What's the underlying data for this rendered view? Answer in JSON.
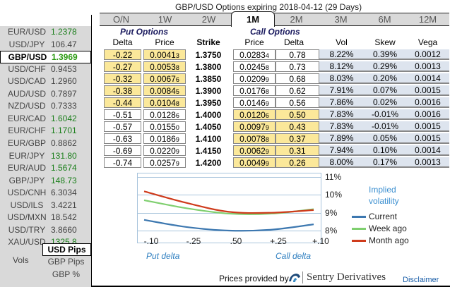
{
  "title": "GBP/USD Options expiring 2018-04-12 (29 Days)",
  "sidebar": {
    "pairs": [
      {
        "name": "EUR/USD",
        "value": "1.2378",
        "trend": "up"
      },
      {
        "name": "USD/JPY",
        "value": "106.47",
        "trend": "flat"
      },
      {
        "name": "GBP/USD",
        "value": "1.3969",
        "trend": "up",
        "selected": true
      },
      {
        "name": "USD/CHF",
        "value": "0.9453",
        "trend": "flat"
      },
      {
        "name": "USD/CAD",
        "value": "1.2960",
        "trend": "flat"
      },
      {
        "name": "AUD/USD",
        "value": "0.7897",
        "trend": "flat"
      },
      {
        "name": "NZD/USD",
        "value": "0.7333",
        "trend": "flat"
      },
      {
        "name": "EUR/CAD",
        "value": "1.6042",
        "trend": "up"
      },
      {
        "name": "EUR/CHF",
        "value": "1.1701",
        "trend": "up"
      },
      {
        "name": "EUR/GBP",
        "value": "0.8862",
        "trend": "flat"
      },
      {
        "name": "EUR/JPY",
        "value": "131.80",
        "trend": "up"
      },
      {
        "name": "EUR/AUD",
        "value": "1.5674",
        "trend": "up"
      },
      {
        "name": "GBP/JPY",
        "value": "148.73",
        "trend": "up"
      },
      {
        "name": "USD/CNH",
        "value": "6.3034",
        "trend": "down"
      },
      {
        "name": "USD/ILS",
        "value": "3.4221",
        "trend": "flat"
      },
      {
        "name": "USD/MXN",
        "value": "18.542",
        "trend": "flat"
      },
      {
        "name": "USD/TRY",
        "value": "3.8660",
        "trend": "flat"
      },
      {
        "name": "XAU/USD",
        "value": "1325.8",
        "trend": "up"
      }
    ],
    "units": [
      "USD Pips",
      "GBP Pips",
      "GBP %"
    ],
    "selected_unit": "USD Pips",
    "vols_label": "Vols",
    "colors": {
      "up": "#1b7f1b",
      "down": "#e52020",
      "flat": "#444444"
    }
  },
  "tabs": [
    "O/N",
    "1W",
    "2W",
    "1M",
    "2M",
    "3M",
    "6M",
    "12M"
  ],
  "active_tab": "1M",
  "table": {
    "put_section": "Put Options",
    "call_section": "Call Options",
    "headers": [
      "Delta",
      "Price",
      "Strike",
      "Price",
      "Delta",
      "Vol",
      "Skew",
      "Vega"
    ],
    "rows": [
      {
        "put_delta": "-0.22",
        "put_price": "0.0041",
        "put_price_sub": "3",
        "strike": "1.3750",
        "call_price": "0.0283",
        "call_price_sub": "4",
        "call_delta": "0.78",
        "vol": "8.22%",
        "skew": "0.39%",
        "vega": "0.0012",
        "itm": "put"
      },
      {
        "put_delta": "-0.27",
        "put_price": "0.0053",
        "put_price_sub": "8",
        "strike": "1.3800",
        "call_price": "0.0245",
        "call_price_sub": "8",
        "call_delta": "0.73",
        "vol": "8.12%",
        "skew": "0.29%",
        "vega": "0.0013",
        "itm": "put"
      },
      {
        "put_delta": "-0.32",
        "put_price": "0.0067",
        "put_price_sub": "6",
        "strike": "1.3850",
        "call_price": "0.0209",
        "call_price_sub": "9",
        "call_delta": "0.68",
        "vol": "8.03%",
        "skew": "0.20%",
        "vega": "0.0014",
        "itm": "put"
      },
      {
        "put_delta": "-0.38",
        "put_price": "0.0084",
        "put_price_sub": "5",
        "strike": "1.3900",
        "call_price": "0.0176",
        "call_price_sub": "8",
        "call_delta": "0.62",
        "vol": "7.91%",
        "skew": "0.07%",
        "vega": "0.0015",
        "itm": "put"
      },
      {
        "put_delta": "-0.44",
        "put_price": "0.0104",
        "put_price_sub": "8",
        "strike": "1.3950",
        "call_price": "0.0146",
        "call_price_sub": "9",
        "call_delta": "0.56",
        "vol": "7.86%",
        "skew": "0.02%",
        "vega": "0.0016",
        "itm": "put"
      },
      {
        "put_delta": "-0.51",
        "put_price": "0.0128",
        "put_price_sub": "6",
        "strike": "1.4000",
        "call_price": "0.0120",
        "call_price_sub": "6",
        "call_delta": "0.50",
        "vol": "7.83%",
        "skew": "-0.01%",
        "vega": "0.0016",
        "itm": "call"
      },
      {
        "put_delta": "-0.57",
        "put_price": "0.0155",
        "put_price_sub": "0",
        "strike": "1.4050",
        "call_price": "0.0097",
        "call_price_sub": "9",
        "call_delta": "0.43",
        "vol": "7.83%",
        "skew": "-0.01%",
        "vega": "0.0015",
        "itm": "call"
      },
      {
        "put_delta": "-0.63",
        "put_price": "0.0186",
        "put_price_sub": "9",
        "strike": "1.4100",
        "call_price": "0.0078",
        "call_price_sub": "8",
        "call_delta": "0.37",
        "vol": "7.89%",
        "skew": "0.05%",
        "vega": "0.0015",
        "itm": "call"
      },
      {
        "put_delta": "-0.69",
        "put_price": "0.0220",
        "put_price_sub": "9",
        "strike": "1.4150",
        "call_price": "0.0062",
        "call_price_sub": "9",
        "call_delta": "0.31",
        "vol": "7.94%",
        "skew": "0.10%",
        "vega": "0.0014",
        "itm": "call"
      },
      {
        "put_delta": "-0.74",
        "put_price": "0.0257",
        "put_price_sub": "9",
        "strike": "1.4200",
        "call_price": "0.0049",
        "call_price_sub": "9",
        "call_delta": "0.26",
        "vol": "8.00%",
        "skew": "0.17%",
        "vega": "0.0013",
        "itm": "call"
      }
    ]
  },
  "chart_data": {
    "type": "line",
    "title": "Implied volatility",
    "categories": [
      "-.10",
      "-.25",
      ".50",
      "+.25",
      "+.10"
    ],
    "xlabel_left": "Put delta",
    "xlabel_right": "Call delta",
    "ylabel": "",
    "ylim": [
      7.7,
      11.25
    ],
    "yticks": [
      "11%",
      "10%",
      "9%",
      "8%"
    ],
    "ytick_values": [
      11,
      10,
      9,
      8
    ],
    "grid": true,
    "legend_position": "right",
    "series": [
      {
        "name": "Current",
        "color": "#3d78b0",
        "values": [
          8.6,
          8.2,
          8.0,
          8.05,
          8.35
        ]
      },
      {
        "name": "Week ago",
        "color": "#7fcf6f",
        "values": [
          9.7,
          9.25,
          8.95,
          8.95,
          9.2
        ]
      },
      {
        "name": "Month ago",
        "color": "#cf3b1c",
        "values": [
          10.2,
          9.55,
          9.05,
          9.0,
          9.15
        ]
      }
    ]
  },
  "footer": {
    "prices_provided_by": "Prices provided by",
    "brand": "Sentry Derivatives",
    "disclaimer": "Disclaimer"
  }
}
